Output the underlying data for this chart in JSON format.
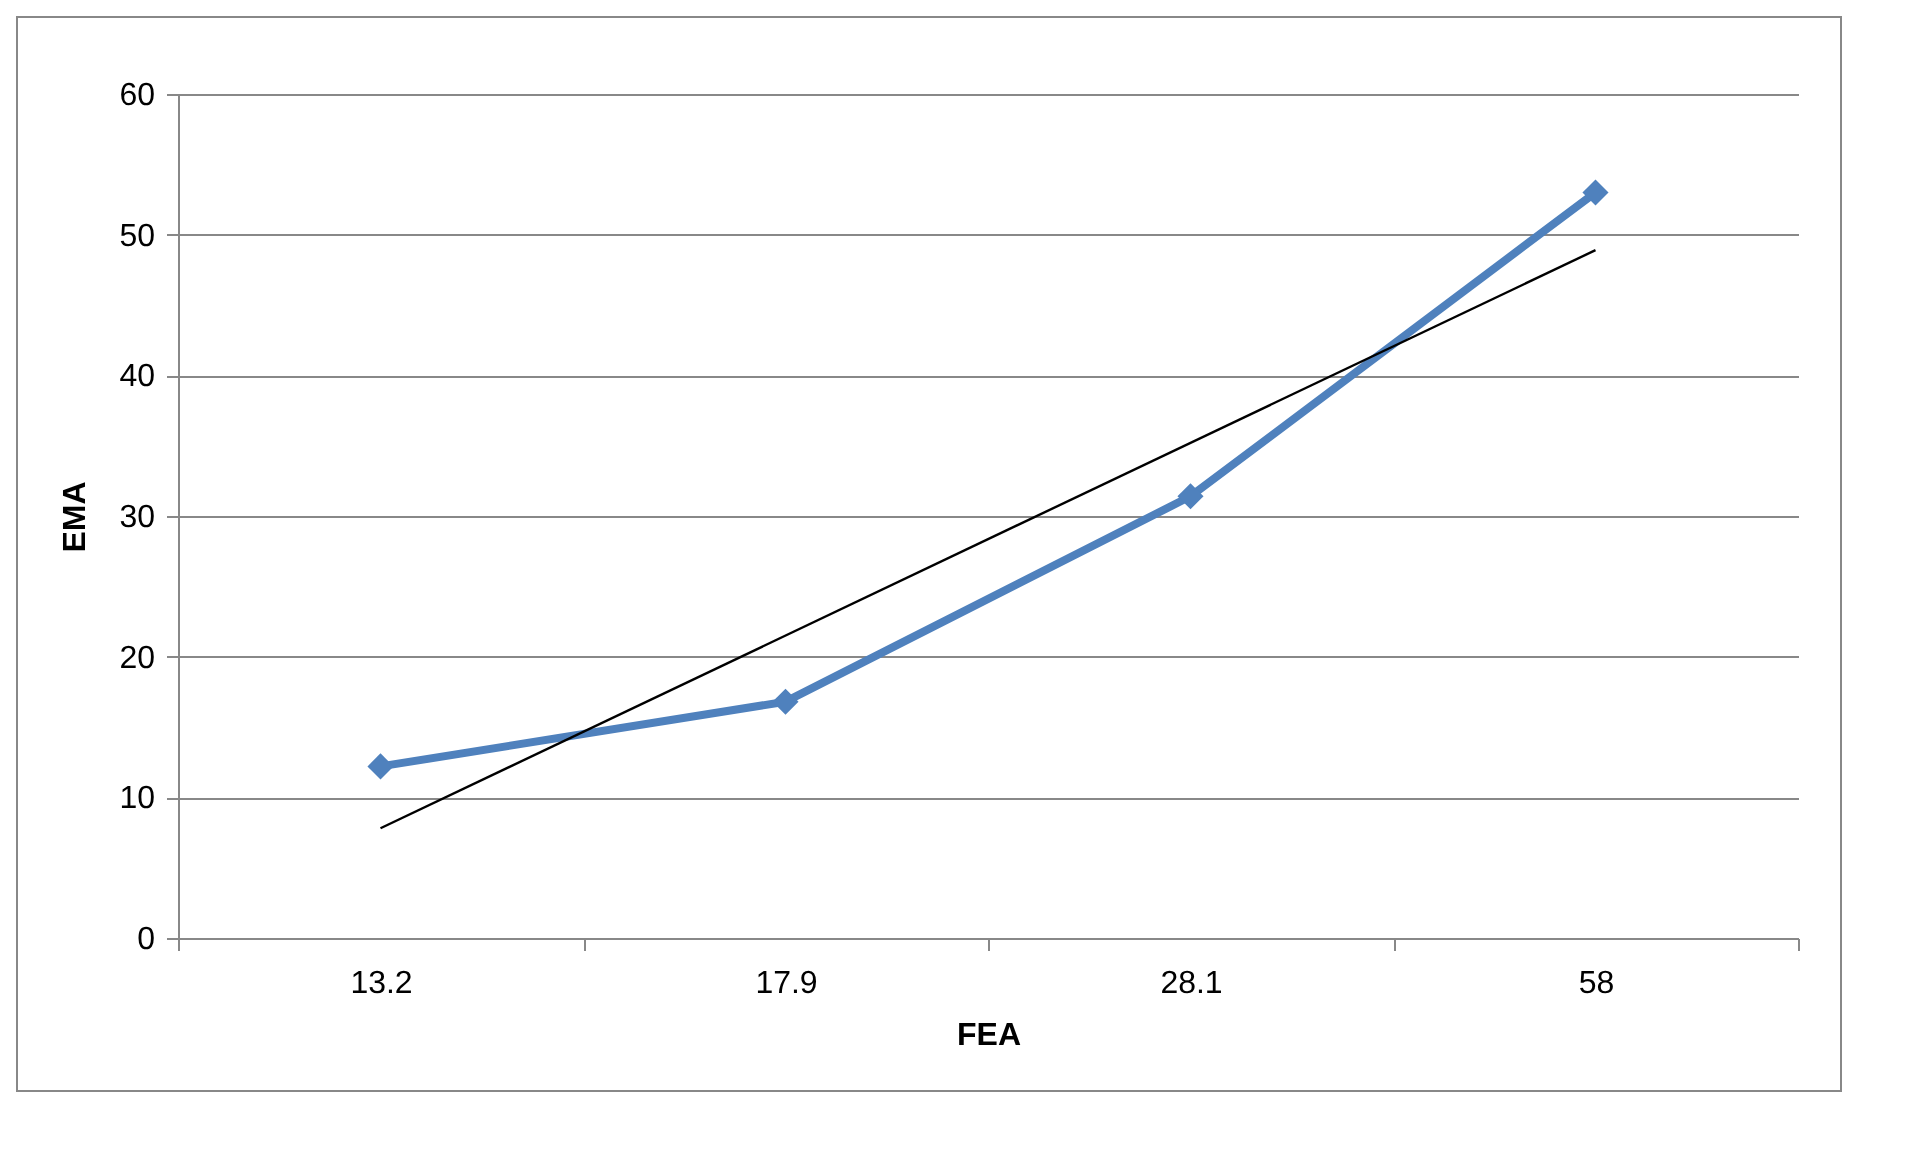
{
  "chart_data": {
    "type": "line",
    "xlabel": "FEA",
    "ylabel": "EMA",
    "categories": [
      "13.2",
      "17.9",
      "28.1",
      "58"
    ],
    "series": [
      {
        "color": "#4f81bd",
        "values": [
          12.2,
          16.8,
          31.4,
          53
        ],
        "marker": "diamond"
      },
      {
        "type": "line",
        "color": "#000000",
        "x": [
          "13.2",
          "58"
        ],
        "values": [
          7.8,
          48.9
        ],
        "marker": "none"
      }
    ],
    "ylim": [
      0,
      60
    ],
    "yticks": [
      0,
      10,
      20,
      30,
      40,
      50,
      60
    ],
    "grid": "y"
  }
}
